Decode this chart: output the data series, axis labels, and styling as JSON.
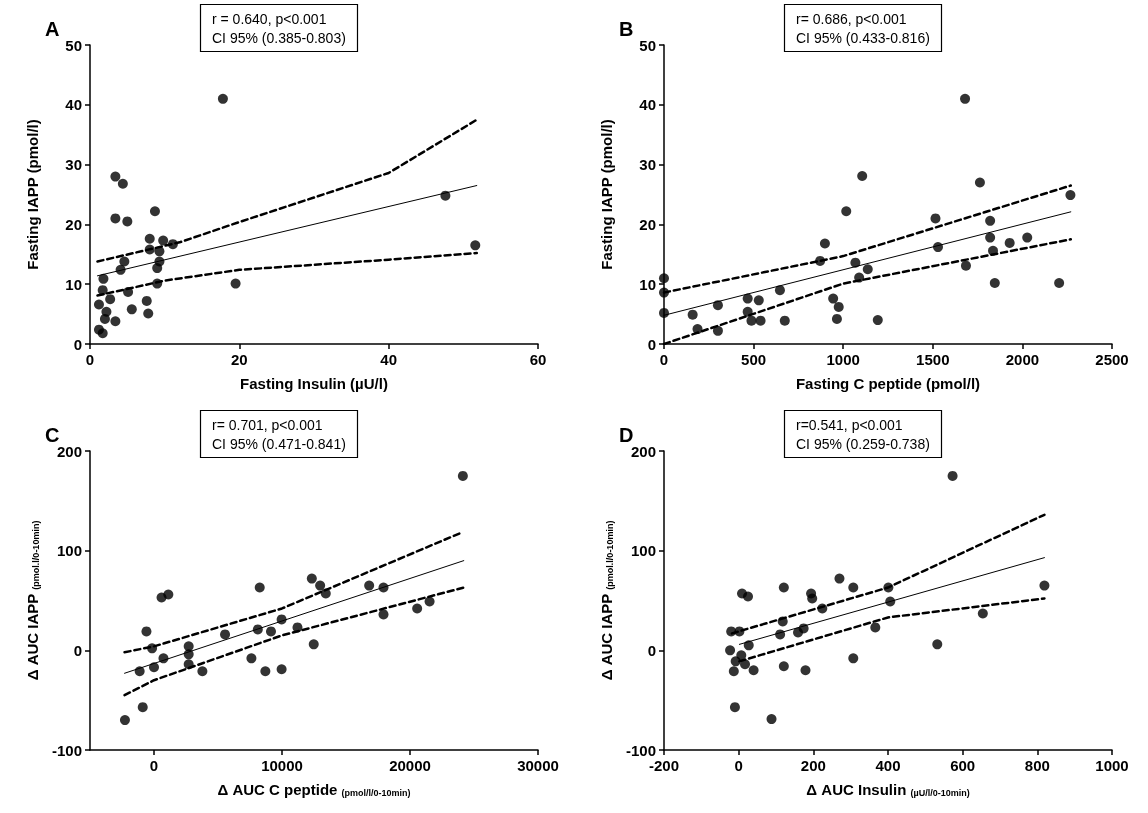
{
  "chart_data": [
    {
      "type": "scatter",
      "title": "A",
      "xlabel": "Fasting Insulin (µU/l)",
      "ylabel": "Fasting IAPP (pmol/l)",
      "annotations": [
        "r = 0.640, p<0.001\nCI 95% (0.385-0.803)"
      ],
      "xlim": [
        0,
        60
      ],
      "xticks": [
        0,
        20,
        40,
        60
      ],
      "ylim": [
        0,
        50
      ],
      "yticks": [
        0,
        10,
        20,
        30,
        40,
        50
      ],
      "grid": false,
      "series": [
        {
          "marker": "circle",
          "color": "#000000",
          "x": [
            17.8,
            3.4,
            4.4,
            3.4,
            5.0,
            8.7,
            47.6,
            51.6,
            19.5,
            8.0,
            9.8,
            11.1,
            8.0,
            9.3,
            4.6,
            4.1,
            9.3,
            9.0,
            9.0,
            1.8,
            1.7,
            2.7,
            5.1,
            1.2,
            7.6,
            5.6,
            7.8,
            3.4,
            2.0,
            1.2,
            1.7,
            2.2
          ],
          "values": [
            41,
            28,
            26.8,
            21,
            20.5,
            22.2,
            24.8,
            16.5,
            10.1,
            17.6,
            17.3,
            16.7,
            15.8,
            15.5,
            13.8,
            12.4,
            13.8,
            12.7,
            10.1,
            10.9,
            9.0,
            7.5,
            8.7,
            6.6,
            7.2,
            5.8,
            5.1,
            3.8,
            4.2,
            2.4,
            1.8,
            5.4
          ]
        },
        {
          "type": "line",
          "marker": "none",
          "line_style": "solid",
          "color": "#000000",
          "x": [
            1,
            51.8
          ],
          "values": [
            11.4,
            26.5
          ]
        },
        {
          "type": "line",
          "marker": "none",
          "line_style": "dashed",
          "color": "#000000",
          "x": [
            1,
            12,
            20,
            40,
            51.8
          ],
          "values": [
            13.8,
            17.0,
            20.4,
            28.6,
            37.5
          ]
        },
        {
          "type": "line",
          "marker": "none",
          "line_style": "dashed",
          "color": "#000000",
          "x": [
            1,
            10,
            20,
            40,
            51.8
          ],
          "values": [
            8.1,
            10.6,
            12.4,
            14.1,
            15.2
          ]
        }
      ]
    },
    {
      "type": "scatter",
      "title": "B",
      "xlabel": "Fasting C peptide (pmol/l)",
      "ylabel": "Fasting IAPP (pmol/l)",
      "annotations": [
        "r= 0.686, p<0.001\nCI 95% (0.433-0.816)"
      ],
      "xlim": [
        0,
        2500
      ],
      "xticks": [
        0,
        500,
        1000,
        1500,
        2000,
        2500
      ],
      "ylim": [
        0,
        50
      ],
      "yticks": [
        0,
        10,
        20,
        30,
        40,
        50
      ],
      "grid": false,
      "series": [
        {
          "marker": "circle",
          "color": "#000000",
          "x": [
            1680,
            1106,
            1763,
            2268,
            1017,
            1515,
            1820,
            2027,
            1929,
            1820,
            1836,
            1529,
            898,
            871,
            1068,
            1137,
            1089,
            1685,
            1846,
            2205,
            0,
            0,
            0,
            160,
            187,
            301,
            301,
            467,
            529,
            467,
            488,
            539,
            647,
            674,
            944,
            975,
            965,
            1193
          ],
          "values": [
            41,
            28.1,
            27.0,
            24.9,
            22.2,
            21.0,
            20.6,
            17.8,
            16.9,
            17.8,
            15.6,
            16.2,
            16.8,
            13.9,
            13.6,
            12.5,
            11.1,
            13.1,
            10.2,
            10.2,
            11,
            8.6,
            5.2,
            4.9,
            2.5,
            6.5,
            2.2,
            7.6,
            7.3,
            5.4,
            3.9,
            3.9,
            9.0,
            3.9,
            7.6,
            6.2,
            4.2,
            4.0
          ]
        },
        {
          "type": "line",
          "marker": "none",
          "line_style": "solid",
          "color": "#000000",
          "x": [
            0,
            2270
          ],
          "values": [
            4.8,
            22.1
          ]
        },
        {
          "type": "line",
          "marker": "none",
          "line_style": "dashed",
          "color": "#000000",
          "x": [
            0,
            1000,
            2270
          ],
          "values": [
            8.6,
            14.7,
            26.5
          ]
        },
        {
          "type": "line",
          "marker": "none",
          "line_style": "dashed",
          "color": "#000000",
          "x": [
            0,
            1000,
            2270
          ],
          "values": [
            0,
            10.1,
            17.5
          ]
        }
      ]
    },
    {
      "type": "scatter",
      "title": "C",
      "xlabel": "Δ AUC C peptide $_{(pmol/l/0-10min)}$",
      "ylabel": "Δ AUC IAPP $_{(pmol.l/0-10min)}$",
      "annotations": [
        "r= 0.701, p<0.001\nCI 95% (0.471-0.841)"
      ],
      "xlim": [
        -5000,
        30000
      ],
      "xticks": [
        0,
        10000,
        20000,
        30000
      ],
      "ylim": [
        -100,
        200
      ],
      "yticks": [
        -100,
        0,
        100,
        200
      ],
      "grid": false,
      "series": [
        {
          "marker": "circle",
          "color": "#000000",
          "x": [
            24130,
            12330,
            12980,
            13420,
            16810,
            17930,
            17930,
            20560,
            21530,
            8260,
            590,
            1120,
            -590,
            5550,
            8110,
            9140,
            9970,
            11210,
            12480,
            7610,
            8700,
            9970,
            3780,
            2710,
            2710,
            2710,
            -150,
            0,
            740,
            -1120,
            -880,
            -2270
          ],
          "values": [
            175,
            72,
            65,
            57,
            65,
            63,
            36,
            42,
            49,
            63,
            53,
            56,
            19,
            16,
            21,
            19,
            31,
            23,
            6,
            -8,
            -21,
            -19,
            -21,
            4,
            -4,
            -14,
            2,
            -17,
            -8,
            -21,
            -57,
            -70
          ]
        },
        {
          "type": "line",
          "marker": "none",
          "line_style": "solid",
          "color": "#000000",
          "x": [
            -2300,
            24200
          ],
          "values": [
            -23,
            90
          ]
        },
        {
          "type": "line",
          "marker": "none",
          "line_style": "dashed",
          "color": "#000000",
          "x": [
            -2300,
            0,
            10000,
            24000
          ],
          "values": [
            -2,
            4,
            42,
            118
          ]
        },
        {
          "type": "line",
          "marker": "none",
          "line_style": "dashed",
          "color": "#000000",
          "x": [
            -2300,
            0,
            10000,
            24200
          ],
          "values": [
            -45,
            -30,
            15,
            63
          ]
        }
      ]
    },
    {
      "type": "scatter",
      "title": "D",
      "xlabel": "Δ AUC Insulin $_{(µU/l/0-10min)}$",
      "ylabel": "Δ AUC IAPP $_{(pmol.l/0-10min)}$",
      "annotations": [
        "r=0.541, p<0.001\nCI 95% (0.259-0.738)"
      ],
      "xlim": [
        -200,
        1000
      ],
      "xticks": [
        -200,
        0,
        200,
        400,
        600,
        800,
        1000
      ],
      "ylim": [
        -100,
        200
      ],
      "yticks": [
        -100,
        0,
        100,
        200
      ],
      "grid": false,
      "series": [
        {
          "marker": "circle",
          "color": "#000000",
          "x": [
            573,
            270,
            307,
            121,
            194,
            197,
            224,
            401,
            406,
            819,
            654,
            9,
            25,
            -20,
            2,
            118,
            111,
            159,
            174,
            366,
            532,
            307,
            -23,
            27,
            7,
            -8,
            17,
            -13,
            40,
            121,
            179,
            -10,
            88
          ],
          "values": [
            175,
            72,
            63,
            63,
            57,
            52,
            42,
            63,
            49,
            65,
            37,
            57,
            54,
            19,
            19,
            29,
            16,
            18,
            22,
            23,
            6,
            -8,
            0,
            5,
            -5,
            -11,
            -14,
            -21,
            -20,
            -16,
            -20,
            -57,
            -69
          ]
        },
        {
          "type": "line",
          "marker": "none",
          "line_style": "solid",
          "color": "#000000",
          "x": [
            2,
            819
          ],
          "values": [
            6,
            93
          ]
        },
        {
          "type": "line",
          "marker": "none",
          "line_style": "dashed",
          "color": "#000000",
          "x": [
            -18,
            400,
            819
          ],
          "values": [
            17,
            63,
            136
          ]
        },
        {
          "type": "line",
          "marker": "none",
          "line_style": "dashed",
          "color": "#000000",
          "x": [
            2,
            400,
            819
          ],
          "values": [
            -11,
            33,
            52
          ]
        }
      ]
    }
  ]
}
